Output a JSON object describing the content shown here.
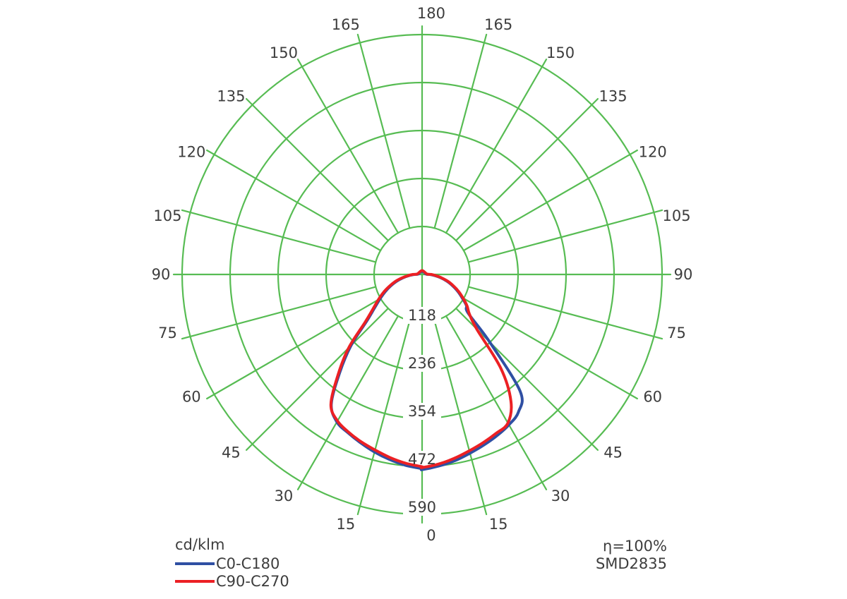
{
  "chart_data": {
    "type": "polar-photometric",
    "units_label": "cd/klm",
    "eta_label": "η=100%",
    "model_label": "SMD2835",
    "angle_tick_step_deg": 15,
    "angle_labels_deg": [
      0,
      15,
      30,
      45,
      60,
      75,
      90,
      105,
      120,
      135,
      150,
      165,
      180
    ],
    "radial_ticks_cd_per_klm": [
      118,
      236,
      354,
      472,
      590
    ],
    "radial_max": 590,
    "grid": {
      "rings": 5,
      "spokes_full_circle": true,
      "inner_empty_circle": true
    },
    "colors": {
      "grid_green": "#57bc53",
      "text_gray": "#3d3d3d",
      "curve_blue": "#2f4fa3",
      "curve_red": "#ec2024",
      "background": "#ffffff"
    },
    "series": [
      {
        "name": "C0-C180",
        "color": "#2f4fa3",
        "right_plane": "C0",
        "left_plane": "C180",
        "angles_deg": [
          0,
          5,
          10,
          15,
          20,
          25,
          30,
          35,
          40,
          45,
          50,
          55,
          60,
          65,
          70,
          75,
          80,
          85,
          90,
          95
        ],
        "right_values_cd_per_klm": [
          480,
          473,
          465,
          455,
          446,
          437,
          427,
          413,
          375,
          235,
          148,
          133,
          113,
          96,
          79,
          63,
          46,
          31,
          19,
          10
        ],
        "left_values_cd_per_klm": [
          478,
          471,
          462,
          452,
          441,
          430,
          419,
          389,
          315,
          247,
          177,
          142,
          119,
          100,
          82,
          65,
          48,
          32,
          19,
          10
        ]
      },
      {
        "name": "C90-C270",
        "color": "#ec2024",
        "right_plane": "C90",
        "left_plane": "C270",
        "angles_deg": [
          0,
          5,
          10,
          15,
          20,
          25,
          30,
          35,
          40,
          45,
          50,
          55,
          60,
          65,
          70,
          75,
          80,
          85,
          90,
          95
        ],
        "right_values_cd_per_klm": [
          475,
          468,
          459,
          449,
          440,
          431,
          422,
          381,
          301,
          190,
          152,
          135,
          116,
          99,
          82,
          66,
          49,
          34,
          23,
          12
        ],
        "left_values_cd_per_klm": [
          473,
          466,
          457,
          447,
          438,
          428,
          416,
          391,
          321,
          255,
          183,
          147,
          124,
          105,
          86,
          69,
          51,
          35,
          23,
          12
        ]
      }
    ]
  }
}
